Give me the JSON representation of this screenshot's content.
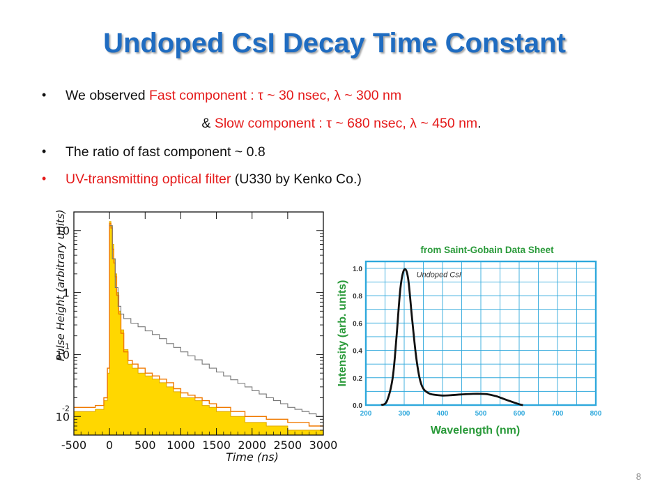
{
  "title": "Undoped CsI Decay Time Constant",
  "bullets": {
    "b1_prefix": "We observed ",
    "b1_red": "Fast component  : τ ~ 30 nsec, λ ~ 300 nm",
    "b2_prefix": "& ",
    "b2_red": "Slow component : τ ~ 680 nsec, λ ~ 450 nm",
    "b2_suffix": ".",
    "b3": "The ratio of fast component ~ 0.8",
    "b4_red": "UV-transmitting optical filter",
    "b4_suffix": " (U330 by Kenko Co.)"
  },
  "page_number": "8",
  "colors": {
    "title": "#1f6cc1",
    "accent_red": "#e51b1b",
    "spectrum_axis": "#2ea8dc",
    "spectrum_label": "#2a9a3a",
    "hist_fill": "#ffd700",
    "hist_orange": "#f07a00"
  },
  "chart_data": [
    {
      "type": "area",
      "xlabel": "Time",
      "xunit": "(ns)",
      "ylabel": "Pulse Height",
      "yunit": "(arbitrary units)",
      "xlim": [
        -500,
        3000
      ],
      "yscale": "log",
      "ylim": [
        0.005,
        20
      ],
      "xticks": [
        "-500",
        "0",
        "500",
        "1000",
        "1500",
        "2000",
        "2500",
        "3000"
      ],
      "ytick_values": [
        0.01,
        0.1,
        1,
        10
      ],
      "ytick_labels": [
        {
          "base": "10",
          "exp": "-2"
        },
        {
          "base": "10",
          "exp": "-1"
        },
        {
          "base": "1",
          "exp": ""
        },
        {
          "base": "10",
          "exp": ""
        }
      ],
      "series": [
        {
          "style": "filled-yellow",
          "x": [
            -500,
            -200,
            -80,
            -30,
            0,
            20,
            40,
            60,
            80,
            100,
            130,
            160,
            200,
            260,
            320,
            400,
            500,
            600,
            700,
            800,
            900,
            1000,
            1100,
            1200,
            1300,
            1400,
            1500,
            1700,
            1900,
            2200,
            2500,
            2800,
            3000
          ],
          "y": [
            0.012,
            0.013,
            0.018,
            0.05,
            14,
            12,
            6,
            3.5,
            2.0,
            1.0,
            0.5,
            0.25,
            0.12,
            0.07,
            0.06,
            0.05,
            0.045,
            0.04,
            0.035,
            0.03,
            0.025,
            0.02,
            0.02,
            0.018,
            0.015,
            0.014,
            0.012,
            0.01,
            0.008,
            0.007,
            0.006,
            0.006,
            0.006
          ]
        },
        {
          "style": "step-orange",
          "x": [
            -500,
            -200,
            -80,
            -30,
            0,
            20,
            40,
            60,
            80,
            100,
            130,
            160,
            200,
            260,
            320,
            400,
            500,
            600,
            700,
            800,
            900,
            1000,
            1100,
            1200,
            1300,
            1400,
            1500,
            1700,
            1900,
            2200,
            2500,
            2800,
            3000
          ],
          "y": [
            0.014,
            0.015,
            0.02,
            0.06,
            13,
            11,
            5,
            3,
            1.8,
            0.9,
            0.45,
            0.22,
            0.11,
            0.08,
            0.07,
            0.06,
            0.05,
            0.045,
            0.04,
            0.035,
            0.028,
            0.024,
            0.022,
            0.02,
            0.018,
            0.016,
            0.014,
            0.012,
            0.01,
            0.009,
            0.008,
            0.007,
            0.007
          ]
        },
        {
          "style": "step-gray",
          "x": [
            0,
            40,
            80,
            120,
            160,
            200,
            300,
            400,
            500,
            600,
            700,
            800,
            900,
            1000,
            1100,
            1200,
            1300,
            1400,
            1500,
            1600,
            1700,
            1800,
            1900,
            2000,
            2100,
            2200,
            2300,
            2400,
            2500,
            2600,
            2700,
            2800,
            2900,
            3000
          ],
          "y": [
            12,
            3.5,
            1.2,
            0.6,
            0.45,
            0.38,
            0.32,
            0.28,
            0.24,
            0.21,
            0.18,
            0.15,
            0.13,
            0.11,
            0.095,
            0.082,
            0.07,
            0.06,
            0.052,
            0.045,
            0.039,
            0.034,
            0.03,
            0.026,
            0.023,
            0.02,
            0.018,
            0.016,
            0.014,
            0.013,
            0.012,
            0.011,
            0.01,
            0.009
          ]
        }
      ]
    },
    {
      "type": "line",
      "title": "from Saint-Gobain Data Sheet",
      "xlabel": "Wavelength (nm)",
      "ylabel": "Intensity (arb. units)",
      "xlim": [
        200,
        800
      ],
      "ylim": [
        0,
        1.05
      ],
      "xticks": [
        200,
        300,
        400,
        500,
        600,
        700,
        800
      ],
      "yticks": [
        0.0,
        0.2,
        0.4,
        0.6,
        0.8,
        1.0
      ],
      "ytick_labels": [
        "0.0",
        "0.2",
        "0.4",
        "0.6",
        "0.8",
        "1.0"
      ],
      "grid": true,
      "annotation": "Undoped CsI",
      "series": [
        {
          "x": [
            240,
            255,
            270,
            280,
            290,
            300,
            310,
            320,
            330,
            340,
            350,
            365,
            380,
            400,
            420,
            450,
            480,
            500,
            520,
            540,
            560,
            580,
            600,
            610
          ],
          "y": [
            0.0,
            0.03,
            0.2,
            0.5,
            0.85,
            0.99,
            0.93,
            0.65,
            0.38,
            0.2,
            0.12,
            0.085,
            0.075,
            0.07,
            0.072,
            0.078,
            0.082,
            0.082,
            0.078,
            0.065,
            0.045,
            0.025,
            0.006,
            0.0
          ]
        }
      ]
    }
  ]
}
